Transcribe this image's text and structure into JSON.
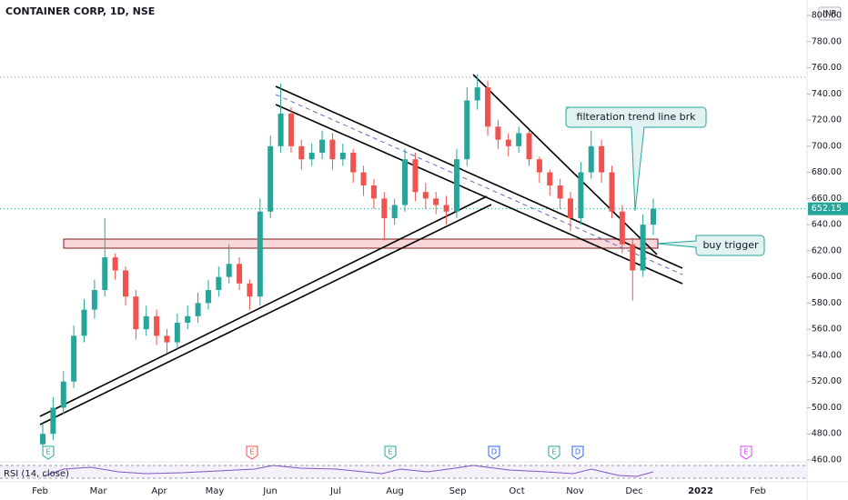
{
  "chart_data": {
    "type": "candlestick",
    "title": "CONTAINER CORP, 1D, NSE",
    "currency": "INR",
    "indicator": "RSI (14, close)",
    "up_color": "#26a69a",
    "down_color": "#ef5350",
    "open": [
      472,
      480,
      500,
      520,
      555,
      575,
      590,
      615,
      605,
      585,
      560,
      570,
      555,
      550,
      565,
      570,
      580,
      590,
      600,
      610,
      595,
      585,
      650,
      700,
      725,
      700,
      690,
      695,
      705,
      690,
      695,
      680,
      670,
      660,
      645,
      655,
      690,
      665,
      660,
      655,
      650,
      690,
      735,
      745,
      715,
      705,
      700,
      710,
      690,
      680,
      670,
      660,
      645,
      680,
      700,
      680,
      650,
      625,
      605,
      640
    ],
    "high": [
      488,
      508,
      528,
      563,
      583,
      598,
      645,
      618,
      608,
      590,
      578,
      575,
      560,
      572,
      578,
      588,
      598,
      608,
      625,
      615,
      598,
      660,
      708,
      748,
      730,
      705,
      702,
      712,
      710,
      702,
      698,
      685,
      675,
      665,
      660,
      698,
      695,
      672,
      665,
      662,
      698,
      745,
      755,
      750,
      720,
      710,
      715,
      712,
      692,
      682,
      675,
      665,
      688,
      712,
      705,
      685,
      655,
      630,
      648,
      660
    ],
    "low": [
      468,
      475,
      495,
      515,
      550,
      568,
      585,
      598,
      578,
      552,
      555,
      548,
      542,
      545,
      560,
      565,
      575,
      585,
      595,
      590,
      575,
      578,
      645,
      695,
      695,
      682,
      685,
      690,
      682,
      685,
      672,
      662,
      652,
      628,
      640,
      650,
      658,
      652,
      648,
      640,
      645,
      685,
      728,
      708,
      698,
      692,
      695,
      685,
      672,
      662,
      652,
      635,
      640,
      675,
      672,
      645,
      618,
      582,
      600,
      632
    ],
    "close": [
      480,
      500,
      520,
      555,
      575,
      590,
      615,
      605,
      585,
      560,
      570,
      555,
      550,
      565,
      570,
      580,
      590,
      600,
      610,
      595,
      585,
      650,
      700,
      725,
      700,
      690,
      695,
      705,
      690,
      695,
      680,
      670,
      660,
      645,
      655,
      690,
      665,
      660,
      655,
      650,
      690,
      735,
      745,
      715,
      705,
      700,
      710,
      690,
      680,
      670,
      660,
      645,
      680,
      700,
      680,
      650,
      625,
      605,
      640,
      652.15
    ],
    "ylim": [
      460,
      800
    ],
    "yticks": [
      {
        "value": 460,
        "label": "460.00"
      },
      {
        "value": 480,
        "label": "480.00"
      },
      {
        "value": 500,
        "label": "500.00"
      },
      {
        "value": 520,
        "label": "520.00"
      },
      {
        "value": 540,
        "label": "540.00"
      },
      {
        "value": 560,
        "label": "560.00"
      },
      {
        "value": 580,
        "label": "580.00"
      },
      {
        "value": 600,
        "label": "600.00"
      },
      {
        "value": 620,
        "label": "620.00"
      },
      {
        "value": 640,
        "label": "640.00"
      },
      {
        "value": 660,
        "label": "660.00"
      },
      {
        "value": 680,
        "label": "680.00"
      },
      {
        "value": 700,
        "label": "700.00"
      },
      {
        "value": 720,
        "label": "720.00"
      },
      {
        "value": 740,
        "label": "740.00"
      },
      {
        "value": 760,
        "label": "760.00"
      },
      {
        "value": 780,
        "label": "780.00"
      },
      {
        "value": 800,
        "label": "800.00"
      }
    ],
    "x_labels": [
      "Feb",
      "Mar",
      "Apr",
      "May",
      "Jun",
      "Jul",
      "Aug",
      "Sep",
      "Oct",
      "Nov",
      "Dec",
      "2022",
      "Feb"
    ],
    "events": [
      {
        "label": "E",
        "color": "#26a69a"
      },
      {
        "label": "E",
        "color": "#ef5350"
      },
      {
        "label": "E",
        "color": "#26a69a"
      },
      {
        "label": "D",
        "color": "#2962ff"
      },
      {
        "label": "E",
        "color": "#26a69a"
      },
      {
        "label": "D",
        "color": "#2962ff"
      },
      {
        "label": "E",
        "color": "#e040fb"
      }
    ],
    "annotations": [
      "filteration trend line brk",
      "buy trigger"
    ]
  }
}
